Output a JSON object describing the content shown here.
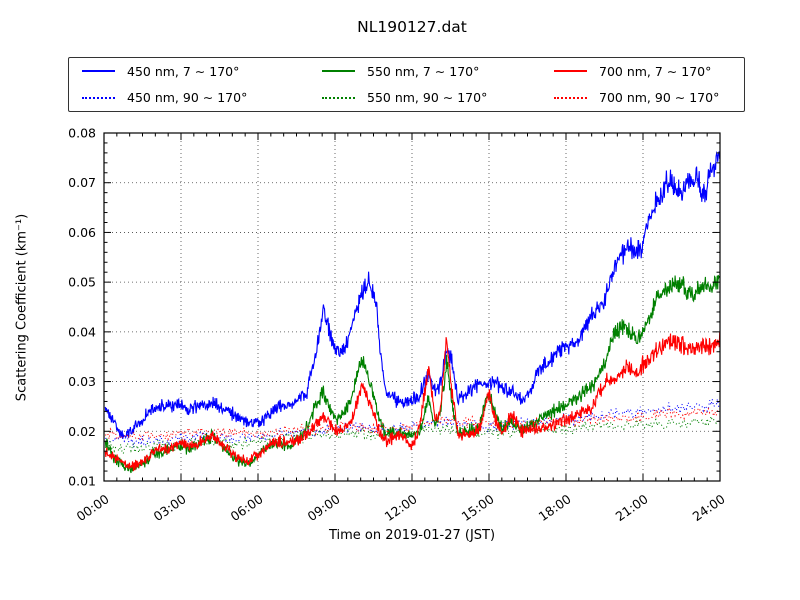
{
  "title": "NL190127.dat",
  "axes": {
    "xlabel": "Time on 2019-01-27 (JST)",
    "ylabel": "Scattering Coefficient (km⁻¹)"
  },
  "chart_data": {
    "type": "line",
    "title": "NL190127.dat",
    "xlabel": "Time on 2019-01-27 (JST)",
    "ylabel": "Scattering Coefficient (km⁻¹)",
    "x_unit": "hours JST",
    "xlim_hours": [
      0,
      24
    ],
    "ylim": [
      0.01,
      0.08
    ],
    "x_tick_hours": [
      0,
      3,
      6,
      9,
      12,
      15,
      18,
      21,
      24
    ],
    "x_tick_labels": [
      "00:00",
      "03:00",
      "06:00",
      "09:00",
      "12:00",
      "15:00",
      "18:00",
      "21:00",
      "24:00"
    ],
    "x_minor_step_hours": 0.5,
    "y_tick_values": [
      0.01,
      0.02,
      0.03,
      0.04,
      0.05,
      0.06,
      0.07,
      0.08
    ],
    "y_tick_labels": [
      "0.01",
      "0.02",
      "0.03",
      "0.04",
      "0.05",
      "0.06",
      "0.07",
      "0.08"
    ],
    "y_minor_step": 0.002,
    "grid": "dotted",
    "legend_position": "top, 3 columns, outside axes",
    "series": [
      {
        "name": "450 nm, 7 ∼ 170°",
        "color": "#0000ff",
        "linestyle": "solid",
        "anchors": [
          [
            0.05,
            0.025
          ],
          [
            0.5,
            0.0205
          ],
          [
            0.8,
            0.019
          ],
          [
            1.3,
            0.021
          ],
          [
            1.8,
            0.0245
          ],
          [
            2.3,
            0.025
          ],
          [
            2.8,
            0.0255
          ],
          [
            3.3,
            0.0245
          ],
          [
            3.8,
            0.025
          ],
          [
            4.3,
            0.0255
          ],
          [
            4.8,
            0.024
          ],
          [
            5.3,
            0.0225
          ],
          [
            5.8,
            0.0213
          ],
          [
            6.1,
            0.0215
          ],
          [
            6.5,
            0.024
          ],
          [
            7.0,
            0.0252
          ],
          [
            7.5,
            0.026
          ],
          [
            7.9,
            0.028
          ],
          [
            8.15,
            0.033
          ],
          [
            8.4,
            0.04
          ],
          [
            8.55,
            0.044
          ],
          [
            8.75,
            0.0405
          ],
          [
            9.0,
            0.037
          ],
          [
            9.2,
            0.035
          ],
          [
            9.5,
            0.0385
          ],
          [
            9.8,
            0.044
          ],
          [
            10.05,
            0.0475
          ],
          [
            10.3,
            0.05
          ],
          [
            10.45,
            0.048
          ],
          [
            10.6,
            0.046
          ],
          [
            10.75,
            0.037
          ],
          [
            10.9,
            0.03
          ],
          [
            11.1,
            0.027
          ],
          [
            11.5,
            0.026
          ],
          [
            12.0,
            0.026
          ],
          [
            12.3,
            0.027
          ],
          [
            12.65,
            0.032
          ],
          [
            12.9,
            0.028
          ],
          [
            13.1,
            0.029
          ],
          [
            13.35,
            0.036
          ],
          [
            13.55,
            0.034
          ],
          [
            13.8,
            0.0265
          ],
          [
            14.2,
            0.028
          ],
          [
            14.6,
            0.0295
          ],
          [
            15.0,
            0.03
          ],
          [
            15.3,
            0.0295
          ],
          [
            15.7,
            0.028
          ],
          [
            16.0,
            0.0275
          ],
          [
            16.35,
            0.026
          ],
          [
            16.7,
            0.029
          ],
          [
            17.0,
            0.033
          ],
          [
            17.5,
            0.035
          ],
          [
            18.0,
            0.037
          ],
          [
            18.5,
            0.0385
          ],
          [
            19.0,
            0.0435
          ],
          [
            19.5,
            0.046
          ],
          [
            20.0,
            0.054
          ],
          [
            20.4,
            0.0575
          ],
          [
            20.7,
            0.056
          ],
          [
            20.95,
            0.0565
          ],
          [
            21.2,
            0.062
          ],
          [
            21.6,
            0.067
          ],
          [
            21.9,
            0.07
          ],
          [
            22.2,
            0.0695
          ],
          [
            22.5,
            0.0685
          ],
          [
            22.8,
            0.071
          ],
          [
            23.1,
            0.0705
          ],
          [
            23.4,
            0.068
          ],
          [
            23.7,
            0.0725
          ],
          [
            24.0,
            0.0755
          ]
        ]
      },
      {
        "name": "450 nm, 90 ∼ 170°",
        "color": "#0000ff",
        "linestyle": "dotted",
        "hourly": [
          0.0185,
          0.018,
          0.018,
          0.0185,
          0.019,
          0.0185,
          0.019,
          0.0195,
          0.02,
          0.0205,
          0.021,
          0.0205,
          0.021,
          0.022,
          0.0215,
          0.021,
          0.0215,
          0.022,
          0.0225,
          0.023,
          0.0235,
          0.024,
          0.0245,
          0.025,
          0.0255
        ]
      },
      {
        "name": "550 nm, 7 ∼ 170°",
        "color": "#008000",
        "linestyle": "solid",
        "anchors": [
          [
            0.05,
            0.0178
          ],
          [
            0.5,
            0.014
          ],
          [
            0.9,
            0.0126
          ],
          [
            1.4,
            0.013
          ],
          [
            1.9,
            0.0155
          ],
          [
            2.4,
            0.016
          ],
          [
            2.9,
            0.017
          ],
          [
            3.4,
            0.0165
          ],
          [
            3.9,
            0.018
          ],
          [
            4.2,
            0.019
          ],
          [
            4.7,
            0.0165
          ],
          [
            5.2,
            0.014
          ],
          [
            5.7,
            0.0136
          ],
          [
            6.2,
            0.016
          ],
          [
            6.7,
            0.018
          ],
          [
            7.2,
            0.017
          ],
          [
            7.7,
            0.019
          ],
          [
            8.0,
            0.022
          ],
          [
            8.3,
            0.026
          ],
          [
            8.55,
            0.028
          ],
          [
            8.8,
            0.0245
          ],
          [
            9.1,
            0.0225
          ],
          [
            9.4,
            0.024
          ],
          [
            9.7,
            0.028
          ],
          [
            10.05,
            0.0345
          ],
          [
            10.3,
            0.031
          ],
          [
            10.55,
            0.0265
          ],
          [
            10.75,
            0.022
          ],
          [
            11.0,
            0.0195
          ],
          [
            11.5,
            0.02
          ],
          [
            12.0,
            0.019
          ],
          [
            12.3,
            0.02
          ],
          [
            12.65,
            0.027
          ],
          [
            12.9,
            0.021
          ],
          [
            13.1,
            0.023
          ],
          [
            13.35,
            0.0345
          ],
          [
            13.55,
            0.026
          ],
          [
            13.8,
            0.0195
          ],
          [
            14.2,
            0.02
          ],
          [
            14.6,
            0.0205
          ],
          [
            15.0,
            0.0275
          ],
          [
            15.2,
            0.024
          ],
          [
            15.5,
            0.0205
          ],
          [
            15.9,
            0.022
          ],
          [
            16.2,
            0.0205
          ],
          [
            16.6,
            0.021
          ],
          [
            17.0,
            0.0225
          ],
          [
            17.5,
            0.024
          ],
          [
            18.0,
            0.0255
          ],
          [
            18.5,
            0.027
          ],
          [
            19.0,
            0.029
          ],
          [
            19.5,
            0.033
          ],
          [
            19.9,
            0.04
          ],
          [
            20.25,
            0.0415
          ],
          [
            20.7,
            0.0388
          ],
          [
            21.0,
            0.04
          ],
          [
            21.5,
            0.0465
          ],
          [
            21.9,
            0.049
          ],
          [
            22.3,
            0.0495
          ],
          [
            22.7,
            0.0485
          ],
          [
            23.0,
            0.048
          ],
          [
            23.4,
            0.049
          ],
          [
            23.7,
            0.0485
          ],
          [
            24.0,
            0.051
          ]
        ]
      },
      {
        "name": "550 nm, 90 ∼ 170°",
        "color": "#008000",
        "linestyle": "dotted",
        "hourly": [
          0.017,
          0.0165,
          0.017,
          0.0175,
          0.018,
          0.0175,
          0.018,
          0.0185,
          0.019,
          0.0195,
          0.0195,
          0.019,
          0.0195,
          0.0205,
          0.02,
          0.0195,
          0.02,
          0.0205,
          0.0205,
          0.021,
          0.021,
          0.0215,
          0.0215,
          0.022,
          0.022
        ]
      },
      {
        "name": "700 nm, 7 ∼ 170°",
        "color": "#ff0000",
        "linestyle": "solid",
        "anchors": [
          [
            0.05,
            0.016
          ],
          [
            0.5,
            0.0145
          ],
          [
            0.9,
            0.013
          ],
          [
            1.4,
            0.0135
          ],
          [
            1.9,
            0.016
          ],
          [
            2.4,
            0.0165
          ],
          [
            2.9,
            0.0175
          ],
          [
            3.4,
            0.017
          ],
          [
            3.9,
            0.0185
          ],
          [
            4.2,
            0.019
          ],
          [
            4.7,
            0.017
          ],
          [
            5.2,
            0.0145
          ],
          [
            5.7,
            0.014
          ],
          [
            6.2,
            0.0165
          ],
          [
            6.7,
            0.018
          ],
          [
            7.2,
            0.0175
          ],
          [
            7.7,
            0.0185
          ],
          [
            8.0,
            0.02
          ],
          [
            8.3,
            0.022
          ],
          [
            8.55,
            0.023
          ],
          [
            8.8,
            0.0215
          ],
          [
            9.1,
            0.02
          ],
          [
            9.4,
            0.021
          ],
          [
            9.7,
            0.023
          ],
          [
            10.05,
            0.029
          ],
          [
            10.3,
            0.0265
          ],
          [
            10.55,
            0.023
          ],
          [
            10.75,
            0.0195
          ],
          [
            11.0,
            0.018
          ],
          [
            11.5,
            0.0195
          ],
          [
            12.0,
            0.017
          ],
          [
            12.3,
            0.021
          ],
          [
            12.65,
            0.033
          ],
          [
            12.9,
            0.022
          ],
          [
            13.1,
            0.024
          ],
          [
            13.35,
            0.0385
          ],
          [
            13.55,
            0.028
          ],
          [
            13.8,
            0.019
          ],
          [
            14.2,
            0.0195
          ],
          [
            14.6,
            0.02
          ],
          [
            15.0,
            0.028
          ],
          [
            15.2,
            0.023
          ],
          [
            15.5,
            0.0195
          ],
          [
            15.9,
            0.0235
          ],
          [
            16.2,
            0.02
          ],
          [
            16.6,
            0.0205
          ],
          [
            17.0,
            0.0205
          ],
          [
            17.5,
            0.0215
          ],
          [
            18.0,
            0.0225
          ],
          [
            18.5,
            0.0235
          ],
          [
            19.0,
            0.0245
          ],
          [
            19.6,
            0.0305
          ],
          [
            20.0,
            0.03
          ],
          [
            20.3,
            0.0335
          ],
          [
            20.7,
            0.031
          ],
          [
            21.0,
            0.0335
          ],
          [
            21.5,
            0.036
          ],
          [
            21.9,
            0.0375
          ],
          [
            22.3,
            0.038
          ],
          [
            22.7,
            0.037
          ],
          [
            23.0,
            0.0365
          ],
          [
            23.4,
            0.0375
          ],
          [
            23.7,
            0.037
          ],
          [
            24.0,
            0.039
          ]
        ]
      },
      {
        "name": "700 nm, 90 ∼ 170°",
        "color": "#ff0000",
        "linestyle": "dotted",
        "hourly": [
          0.0195,
          0.019,
          0.019,
          0.0195,
          0.02,
          0.0195,
          0.0195,
          0.02,
          0.0205,
          0.021,
          0.021,
          0.0205,
          0.021,
          0.0225,
          0.022,
          0.0215,
          0.0215,
          0.022,
          0.022,
          0.0225,
          0.0225,
          0.023,
          0.0235,
          0.0235,
          0.024
        ]
      }
    ]
  },
  "colors": {
    "blue": "#0000ff",
    "green": "#008000",
    "red": "#ff0000",
    "frame": "#000000",
    "grid": "#444444",
    "background": "#ffffff"
  }
}
